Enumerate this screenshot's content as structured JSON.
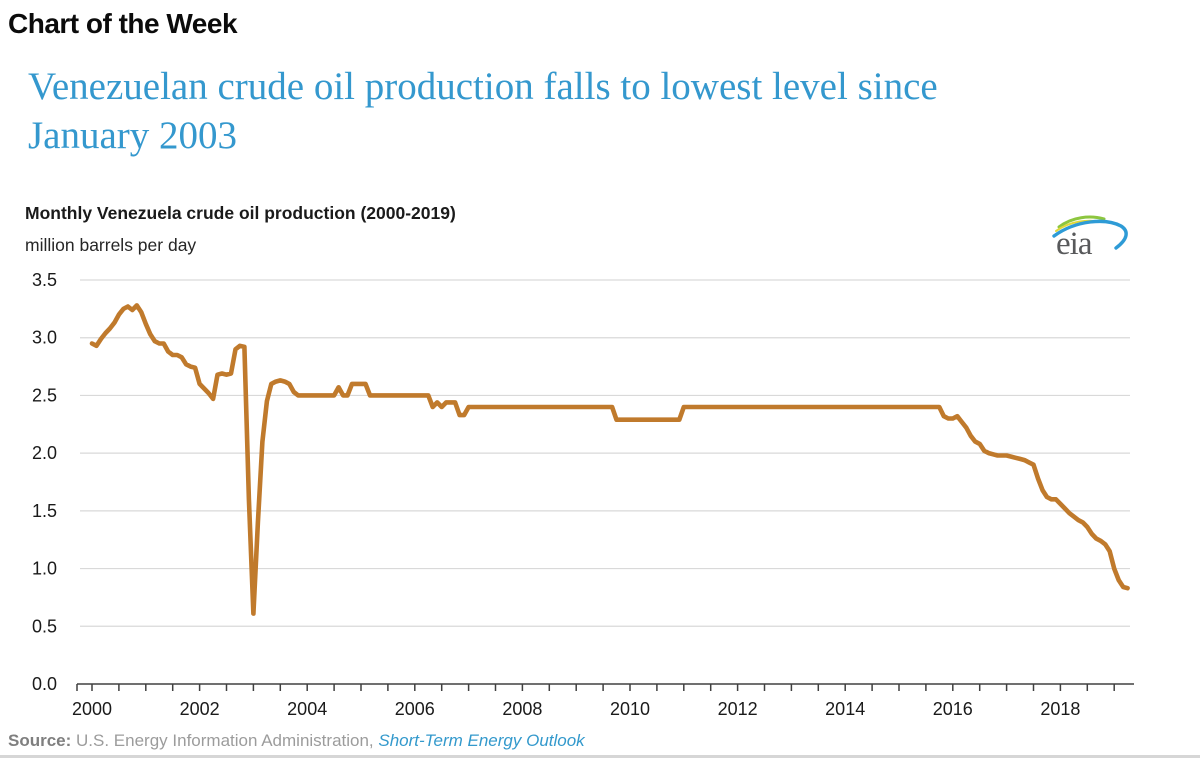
{
  "page": {
    "kicker": "Chart of the Week",
    "headline_lines": [
      "Venezuelan crude oil production falls to lowest level since",
      "January 2003"
    ]
  },
  "chart": {
    "title": "Monthly Venezuela crude oil production (2000-2019)",
    "subtitle": "million barrels per day"
  },
  "logo": {
    "text": "eia"
  },
  "source": {
    "label": "Source:",
    "text": " U.S. Energy Information Administration, ",
    "link": "Short-Term Energy Outlook"
  },
  "colors": {
    "line": "#c07a2c",
    "headline": "#3498ce",
    "link": "#3399cc",
    "grid": "#d9d9d9",
    "axis": "#404040",
    "tick_text": "#1a1a1a"
  },
  "chart_data": {
    "type": "line",
    "title": "Monthly Venezuela crude oil production (2000-2019)",
    "xlabel": "",
    "ylabel": "million barrels per day",
    "ylim": [
      0,
      3.5
    ],
    "xlim": [
      2000,
      2019.4
    ],
    "grid": "horizontal-only",
    "legend": "none",
    "x_start_year": 2000,
    "x_step_months": 1,
    "y_ticks": [
      {
        "value": 3.5,
        "label": "3.5"
      },
      {
        "value": 3.0,
        "label": "3.0"
      },
      {
        "value": 2.5,
        "label": "2.5"
      },
      {
        "value": 2.0,
        "label": "2.0"
      },
      {
        "value": 1.5,
        "label": "1.5"
      },
      {
        "value": 1.0,
        "label": "1.0"
      },
      {
        "value": 0.5,
        "label": "0.5"
      },
      {
        "value": 0.0,
        "label": "0.0"
      }
    ],
    "x_ticks": [
      {
        "year": 2000,
        "label": "2000"
      },
      {
        "year": 2002,
        "label": "2002"
      },
      {
        "year": 2004,
        "label": "2004"
      },
      {
        "year": 2006,
        "label": "2006"
      },
      {
        "year": 2008,
        "label": "2008"
      },
      {
        "year": 2010,
        "label": "2010"
      },
      {
        "year": 2012,
        "label": "2012"
      },
      {
        "year": 2014,
        "label": "2014"
      },
      {
        "year": 2016,
        "label": "2016"
      },
      {
        "year": 2018,
        "label": "2018"
      }
    ],
    "series": [
      {
        "name": "Venezuela crude oil production (million barrels per day)",
        "values": [
          2.95,
          2.93,
          2.99,
          3.04,
          3.08,
          3.13,
          3.2,
          3.25,
          3.27,
          3.24,
          3.28,
          3.22,
          3.12,
          3.03,
          2.97,
          2.95,
          2.95,
          2.88,
          2.85,
          2.85,
          2.83,
          2.77,
          2.75,
          2.74,
          2.6,
          2.56,
          2.52,
          2.47,
          2.68,
          2.69,
          2.68,
          2.69,
          2.9,
          2.93,
          2.92,
          1.6,
          0.61,
          1.4,
          2.1,
          2.45,
          2.6,
          2.62,
          2.63,
          2.62,
          2.6,
          2.53,
          2.5,
          2.5,
          2.5,
          2.5,
          2.5,
          2.5,
          2.5,
          2.5,
          2.5,
          2.57,
          2.5,
          2.5,
          2.6,
          2.6,
          2.6,
          2.6,
          2.5,
          2.5,
          2.5,
          2.5,
          2.5,
          2.5,
          2.5,
          2.5,
          2.5,
          2.5,
          2.5,
          2.5,
          2.5,
          2.5,
          2.4,
          2.44,
          2.4,
          2.44,
          2.44,
          2.44,
          2.33,
          2.33,
          2.4,
          2.4,
          2.4,
          2.4,
          2.4,
          2.4,
          2.4,
          2.4,
          2.4,
          2.4,
          2.4,
          2.4,
          2.4,
          2.4,
          2.4,
          2.4,
          2.4,
          2.4,
          2.4,
          2.4,
          2.4,
          2.4,
          2.4,
          2.4,
          2.4,
          2.4,
          2.4,
          2.4,
          2.4,
          2.4,
          2.4,
          2.4,
          2.4,
          2.29,
          2.29,
          2.29,
          2.29,
          2.29,
          2.29,
          2.29,
          2.29,
          2.29,
          2.29,
          2.29,
          2.29,
          2.29,
          2.29,
          2.29,
          2.4,
          2.4,
          2.4,
          2.4,
          2.4,
          2.4,
          2.4,
          2.4,
          2.4,
          2.4,
          2.4,
          2.4,
          2.4,
          2.4,
          2.4,
          2.4,
          2.4,
          2.4,
          2.4,
          2.4,
          2.4,
          2.4,
          2.4,
          2.4,
          2.4,
          2.4,
          2.4,
          2.4,
          2.4,
          2.4,
          2.4,
          2.4,
          2.4,
          2.4,
          2.4,
          2.4,
          2.4,
          2.4,
          2.4,
          2.4,
          2.4,
          2.4,
          2.4,
          2.4,
          2.4,
          2.4,
          2.4,
          2.4,
          2.4,
          2.4,
          2.4,
          2.4,
          2.4,
          2.4,
          2.4,
          2.4,
          2.4,
          2.4,
          2.32,
          2.3,
          2.3,
          2.32,
          2.27,
          2.22,
          2.15,
          2.1,
          2.08,
          2.02,
          2.0,
          1.99,
          1.98,
          1.98,
          1.98,
          1.97,
          1.96,
          1.95,
          1.94,
          1.92,
          1.9,
          1.78,
          1.68,
          1.62,
          1.6,
          1.6,
          1.56,
          1.52,
          1.48,
          1.45,
          1.42,
          1.4,
          1.36,
          1.3,
          1.26,
          1.24,
          1.21,
          1.15,
          1.0,
          0.9,
          0.84,
          0.83
        ]
      }
    ],
    "annotations": []
  }
}
